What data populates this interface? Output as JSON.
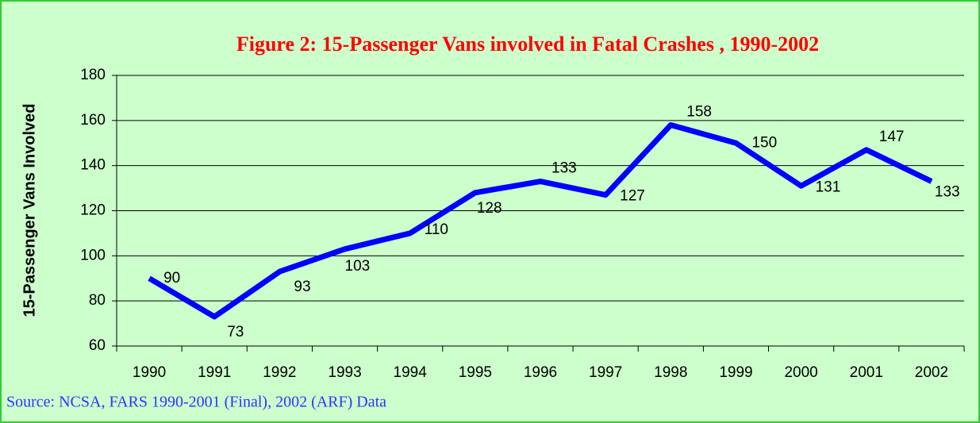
{
  "chart_data": {
    "type": "line",
    "title": "Figure 2: 15-Passenger Vans involved in Fatal Crashes , 1990-2002",
    "y_label": "15-Passenger Vans Involved",
    "source": "Source: NCSA, FARS 1990-2001 (Final), 2002 (ARF) Data",
    "categories": [
      "1990",
      "1991",
      "1992",
      "1993",
      "1994",
      "1995",
      "1996",
      "1997",
      "1998",
      "1999",
      "2000",
      "2001",
      "2002"
    ],
    "values": [
      90,
      73,
      93,
      103,
      110,
      128,
      133,
      127,
      158,
      150,
      131,
      147,
      133
    ],
    "color": "#0000ff",
    "ylim": [
      60,
      180
    ],
    "yticks": [
      60,
      80,
      100,
      120,
      140,
      160,
      180
    ],
    "grid": true
  }
}
